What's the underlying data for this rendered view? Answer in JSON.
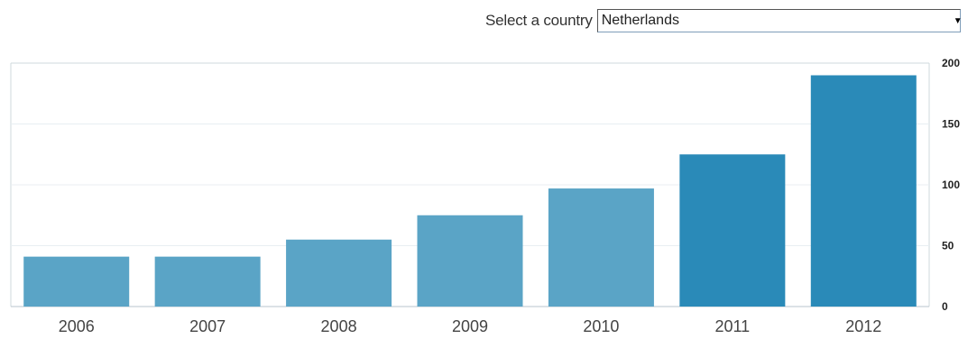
{
  "selector": {
    "label": "Select a country",
    "selected": "Netherlands"
  },
  "colors": {
    "bar_light": "#5aa4c6",
    "bar_dark": "#2a8ab8",
    "grid": "#e8eef2",
    "frame": "#cfd8de"
  },
  "chart_data": {
    "type": "bar",
    "categories": [
      "2006",
      "2007",
      "2008",
      "2009",
      "2010",
      "2011",
      "2012"
    ],
    "values": [
      41,
      41,
      55,
      75,
      97,
      125,
      190
    ],
    "ylim": [
      0,
      200
    ],
    "yticks": [
      0,
      50,
      100,
      150,
      200
    ],
    "yaxis_position": "right",
    "grid": true,
    "highlighted": [
      false,
      false,
      false,
      false,
      false,
      true,
      true
    ]
  }
}
